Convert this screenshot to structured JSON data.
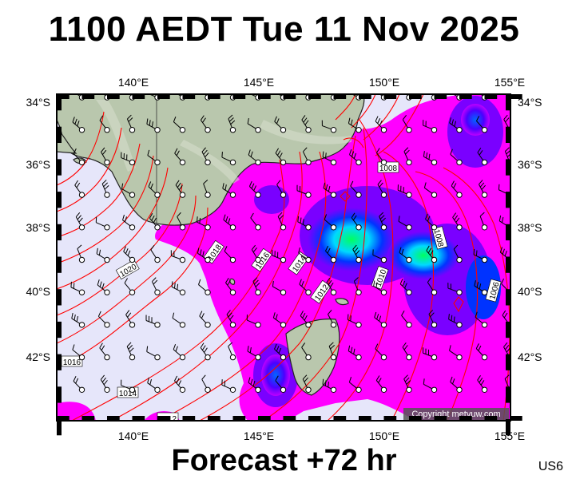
{
  "header": {
    "title": "1100 AEDT Tue 11 Nov 2025"
  },
  "footer": {
    "forecast": "Forecast +72 hr",
    "code": "US6"
  },
  "map": {
    "copyright": "Copyright metvuw.com",
    "lon_ticks": [
      "140°E",
      "145°E",
      "150°E",
      "155°E"
    ],
    "lat_ticks": [
      "34°S",
      "36°S",
      "38°S",
      "40°S",
      "42°S"
    ],
    "isobar_labels": [
      "1020",
      "1018",
      "1016",
      "1014",
      "1012",
      "1010",
      "1008",
      "1008",
      "1006",
      "1016",
      "1014",
      "1012"
    ],
    "colors": {
      "ocean": "#e6e6fa",
      "land": "#b9c7ad",
      "isobar": "#ff0000",
      "rain_light": "#ff00ff",
      "rain_mod": "#7a00ff",
      "rain_heavy": "#0033ff",
      "rain_vheavy": "#00d9ff",
      "rain_extreme": "#00ff80"
    }
  }
}
